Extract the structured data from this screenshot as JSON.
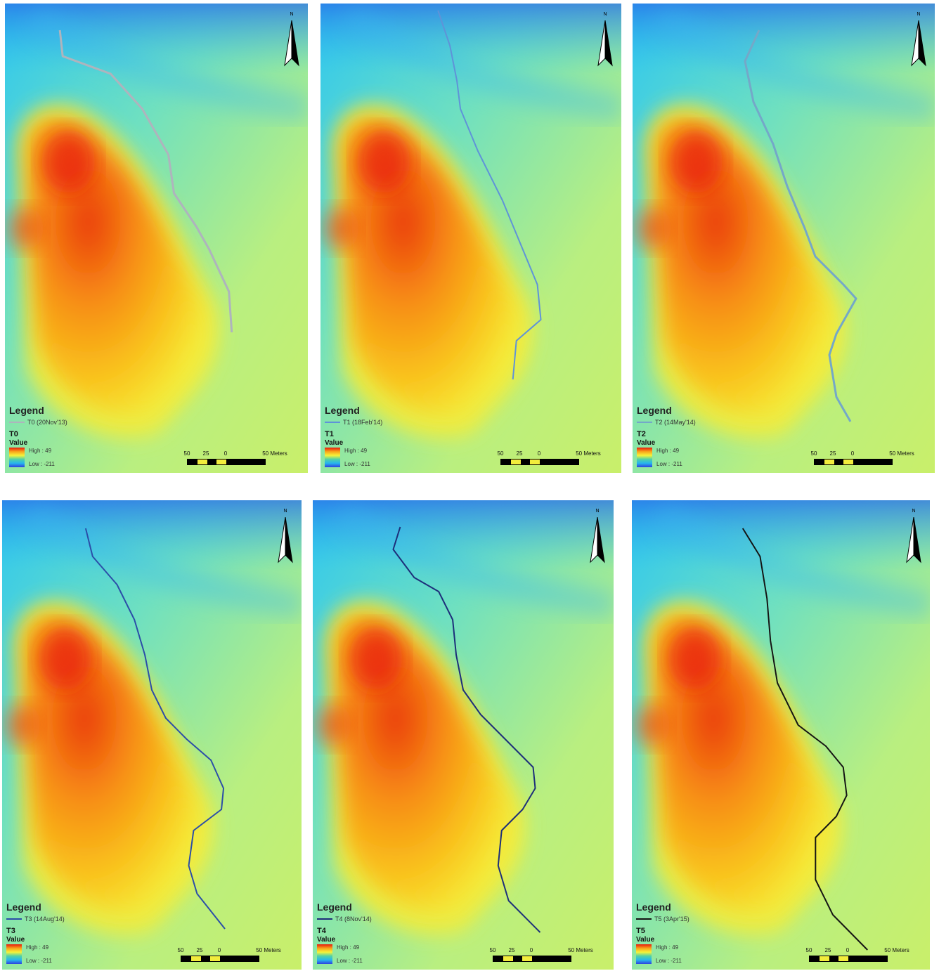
{
  "figure": {
    "panels": [
      {
        "id": "T0",
        "legend_title": "Legend",
        "line_label": "T0 (20Nov'13)",
        "time_label": "T0",
        "value_label": "Value",
        "high_label": "High : 49",
        "low_label": "Low : -211",
        "scale_labels": [
          "50",
          "25",
          "0",
          "50 Meters"
        ],
        "north_label": "N",
        "line_color": "#aeb4bd"
      },
      {
        "id": "T1",
        "legend_title": "Legend",
        "line_label": "T1 (18Feb'14)",
        "time_label": "T1",
        "value_label": "Value",
        "high_label": "High : 49",
        "low_label": "Low : -211",
        "scale_labels": [
          "50",
          "25",
          "0",
          "50 Meters"
        ],
        "north_label": "N",
        "line_color": "#5f93d8"
      },
      {
        "id": "T2",
        "legend_title": "Legend",
        "line_label": "T2 (14May'14)",
        "time_label": "T2",
        "value_label": "Value",
        "high_label": "High : 49",
        "low_label": "Low : -211",
        "scale_labels": [
          "50",
          "25",
          "0",
          "50 Meters"
        ],
        "north_label": "N",
        "line_color": "#74a8c8"
      },
      {
        "id": "T3",
        "legend_title": "Legend",
        "line_label": "T3 (14Aug'14)",
        "time_label": "T3",
        "value_label": "Value",
        "high_label": "High : 49",
        "low_label": "Low : -211",
        "scale_labels": [
          "50",
          "25",
          "0",
          "50 Meters"
        ],
        "north_label": "N",
        "line_color": "#2b4ea8"
      },
      {
        "id": "T4",
        "legend_title": "Legend",
        "line_label": "T4 (8Nov'14)",
        "time_label": "T4",
        "value_label": "Value",
        "high_label": "High : 49",
        "low_label": "Low : -211",
        "scale_labels": [
          "50",
          "25",
          "0",
          "50 Meters"
        ],
        "north_label": "N",
        "line_color": "#1d2f7a"
      },
      {
        "id": "T5",
        "legend_title": "Legend",
        "line_label": "T5 (3Apr'15)",
        "time_label": "T5",
        "value_label": "Value",
        "high_label": "High : 49",
        "low_label": "Low : -211",
        "scale_labels": [
          "50",
          "25",
          "0",
          "50 Meters"
        ],
        "north_label": "N",
        "line_color": "#141414"
      }
    ],
    "colors": {
      "ramp_high": "#e8180c",
      "ramp_mid_high": "#f9a21a",
      "ramp_mid": "#f6f33a",
      "ramp_mid_low": "#4fd1a8",
      "ramp_low_mid": "#26b6ee",
      "ramp_low": "#2e3fe0"
    }
  }
}
